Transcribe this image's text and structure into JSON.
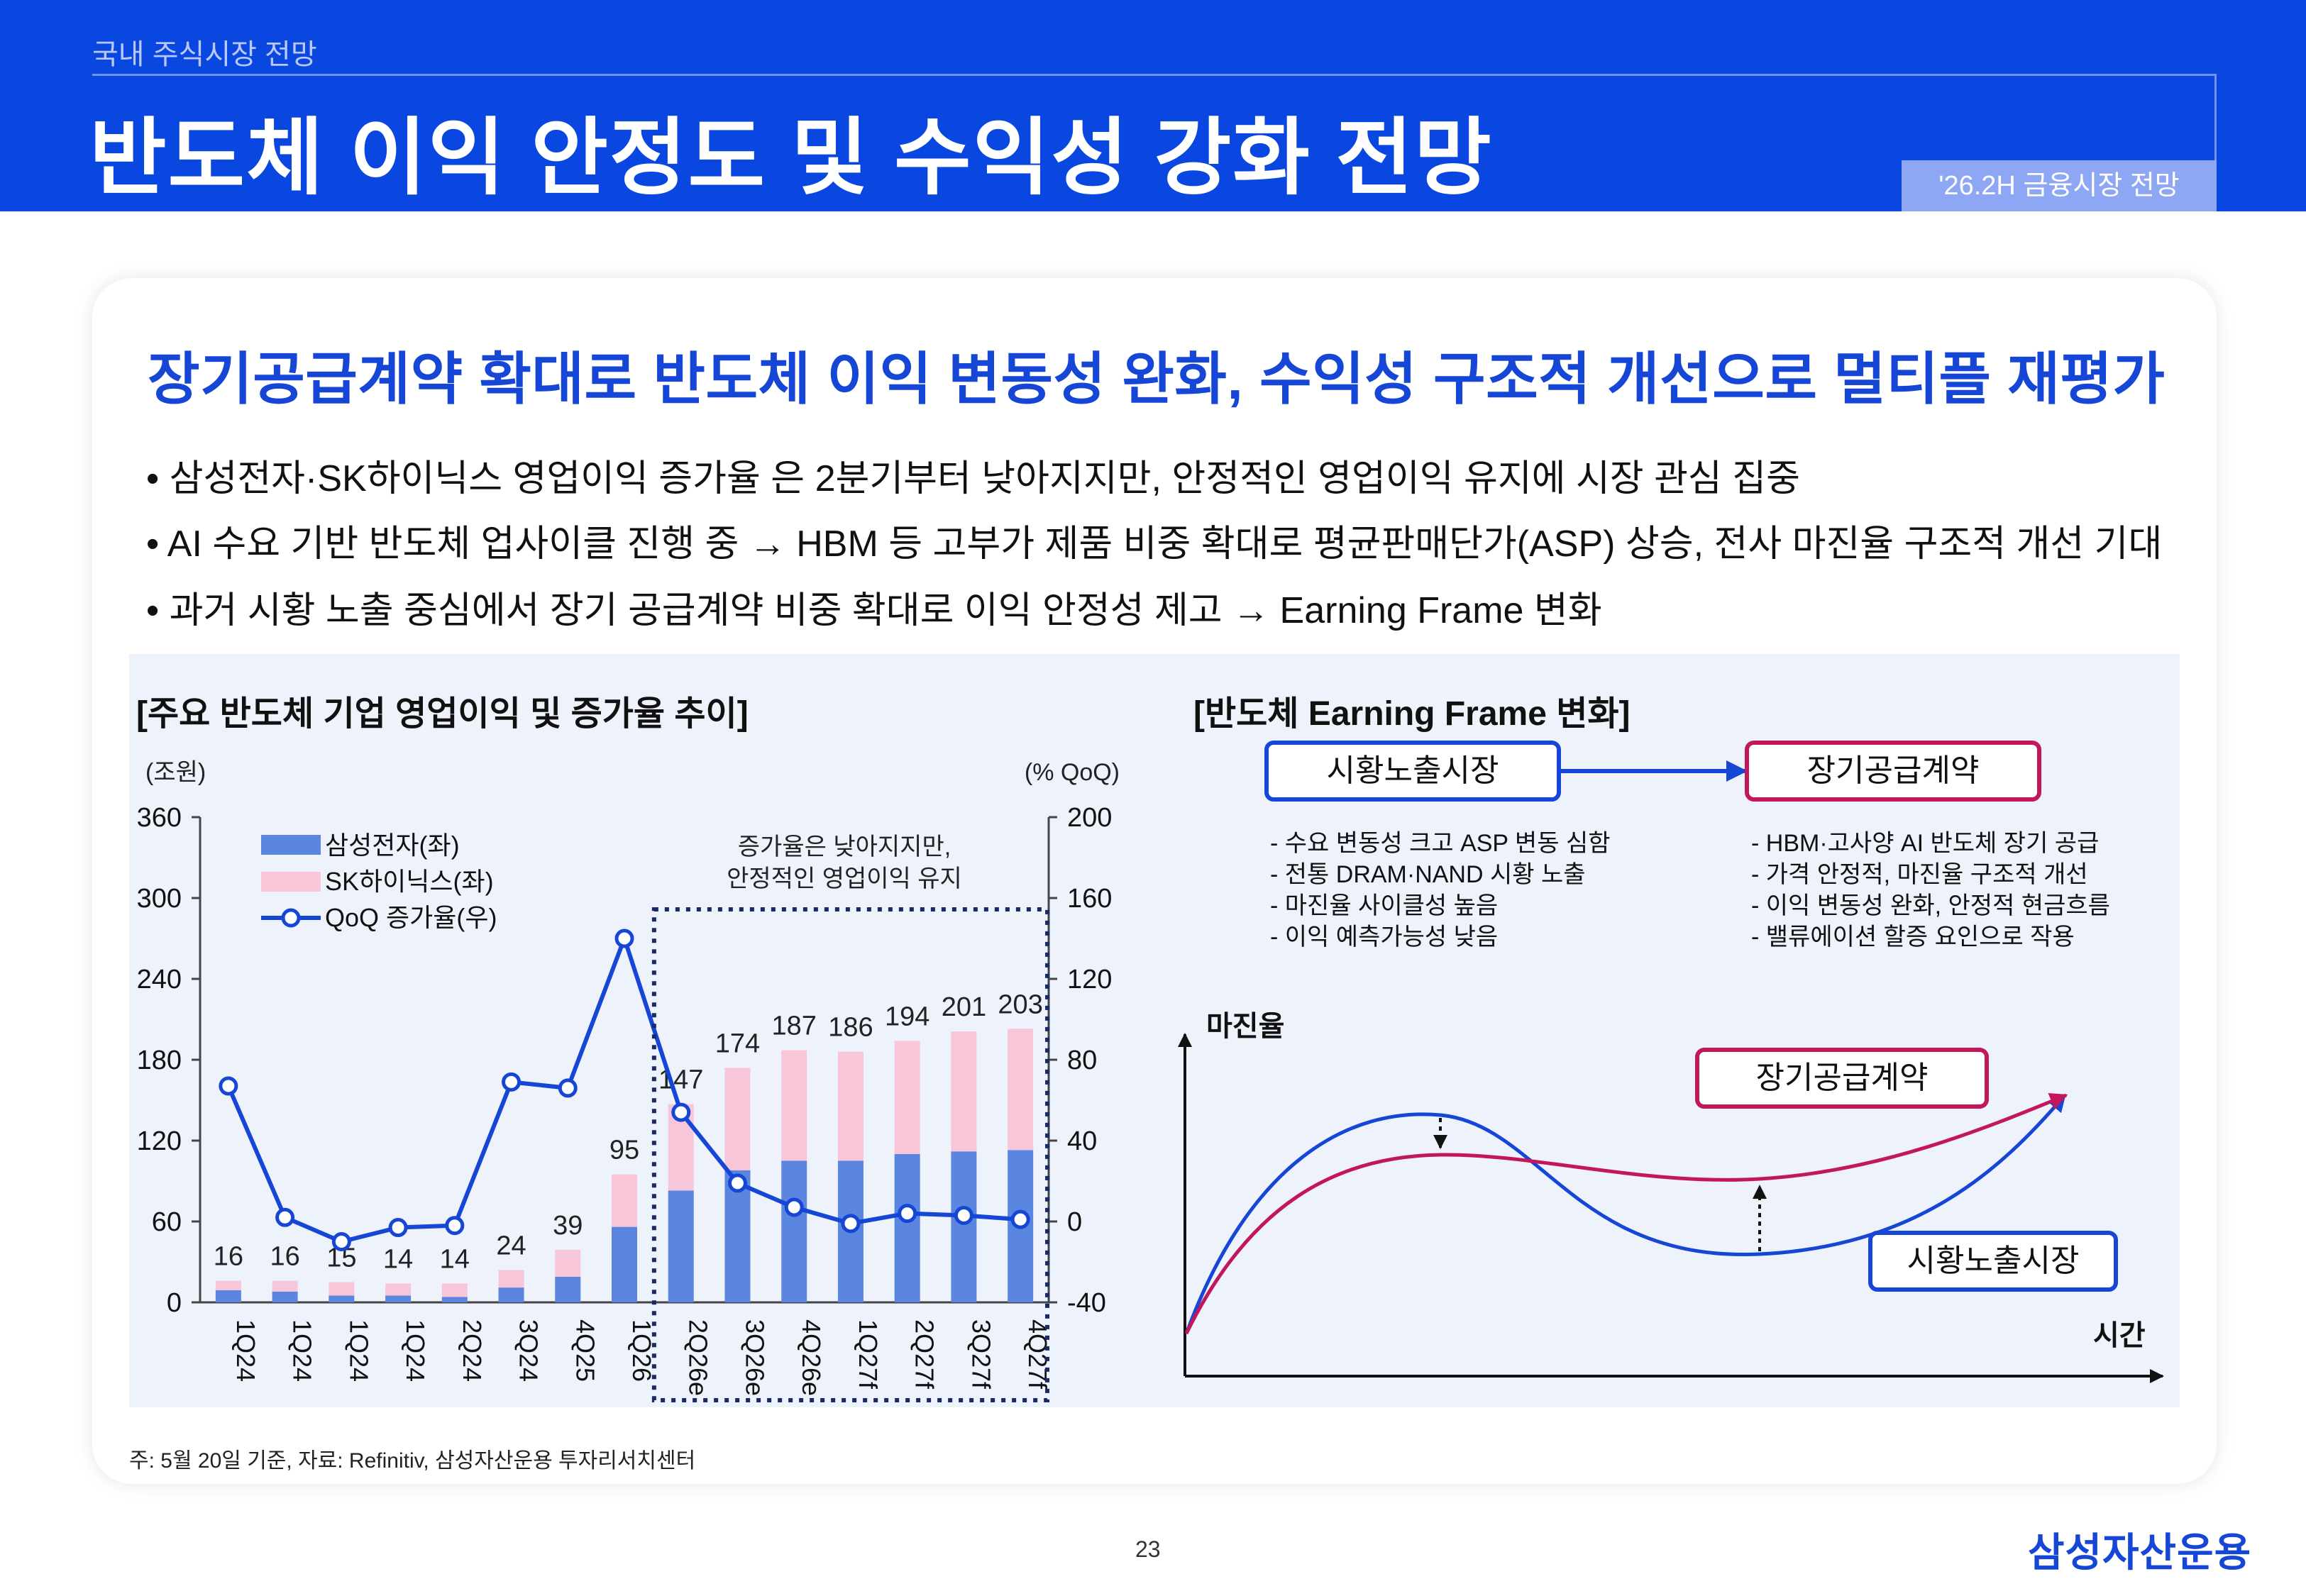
{
  "header": {
    "breadcrumb": "국내 주식시장 전망",
    "title": "반도체 이익 안정도 및 수익성 강화 전망",
    "tag": "'26.2H 금융시장 전망"
  },
  "headline": "장기공급계약 확대로 반도체 이익 변동성 완화, 수익성 구조적 개선으로 멀티플 재평가",
  "bullets": [
    "• 삼성전자·SK하이닉스 영업이익 증가율 은 2분기부터 낮아지지만, 안정적인 영업이익 유지에 시장 관심 집중",
    "• AI 수요 기반 반도체 업사이클 진행 중 → HBM 등 고부가 제품 비중 확대로 평균판매단가(ASP) 상승, 전사 마진율 구조적 개선 기대",
    "• 과거 시황 노출 중심에서 장기 공급계약 비중 확대로 이익 안정성 제고 → Earning Frame 변화"
  ],
  "left_panel": {
    "title": "[주요 반도체 기업 영업이익 및 증가율 추이]",
    "annotation_line1": "증가율은 낮아지지만,",
    "annotation_line2": "안정적인 영업이익 유지"
  },
  "chart_data": {
    "type": "bar",
    "stacked": true,
    "categories": [
      "1Q24",
      "1Q24",
      "1Q24",
      "1Q24",
      "2Q24",
      "3Q24",
      "4Q25",
      "1Q26",
      "2Q26e",
      "3Q26e",
      "4Q26e",
      "1Q27f",
      "2Q27f",
      "3Q27f",
      "4Q27f"
    ],
    "series": [
      {
        "name": "삼성전자(좌)",
        "axis": "left",
        "color": "#5b86e0",
        "values": [
          9,
          8,
          5,
          5,
          4,
          11,
          19,
          56,
          83,
          98,
          105,
          105,
          110,
          112,
          113
        ]
      },
      {
        "name": "SK하이닉스(좌)",
        "axis": "left",
        "color": "#f7c6d9",
        "values": [
          7,
          8,
          10,
          9,
          10,
          13,
          20,
          39,
          64,
          76,
          82,
          81,
          84,
          89,
          90
        ]
      },
      {
        "name": "QoQ 증가율(우)",
        "type": "line",
        "axis": "right",
        "color": "#1646d6",
        "values": [
          67,
          2,
          -10,
          -3,
          -2,
          69,
          66,
          140,
          54,
          19,
          7,
          -1,
          4,
          3,
          1
        ]
      }
    ],
    "totals": [
      16,
      16,
      15,
      14,
      14,
      24,
      39,
      95,
      147,
      174,
      187,
      186,
      194,
      201,
      203
    ],
    "left_axis": {
      "unit": "(조원)",
      "min": 0,
      "max": 360,
      "ticks": [
        0,
        60,
        120,
        180,
        240,
        300,
        360
      ]
    },
    "right_axis": {
      "unit": "(% QoQ)",
      "min": -40,
      "max": 200,
      "ticks": [
        -40,
        0,
        40,
        80,
        120,
        160,
        200
      ]
    },
    "highlight_range": [
      "2Q26e",
      "4Q27f"
    ],
    "legend": "top-left"
  },
  "right_panel": {
    "title": "[반도체 Earning Frame 변화]",
    "box_left": "시황노출시장",
    "box_right": "장기공급계약",
    "left_items": [
      "-   수요 변동성 크고 ASP 변동 심함",
      "-   전통 DRAM·NAND 시황 노출",
      "-   마진율 사이클성 높음",
      "-   이익 예측가능성 낮음"
    ],
    "right_items": [
      "-   HBM·고사양 AI 반도체 장기 공급",
      "-   가격 안정적, 마진율 구조적 개선",
      "-   이익 변동성 완화, 안정적 현금흐름",
      "-   밸류에이션 할증 요인으로 작용"
    ],
    "ylabel": "마진율",
    "xlabel": "시간",
    "curve_label_contract": "장기공급계약",
    "curve_label_market": "시황노출시장",
    "colors": {
      "market": "#1646d6",
      "contract": "#c2185b"
    }
  },
  "footer": {
    "note": "주: 5월 20일 기준, 자료: Refinitiv, 삼성자산운용 투자리서치센터",
    "page": "23",
    "logo": "삼성자산운용"
  }
}
